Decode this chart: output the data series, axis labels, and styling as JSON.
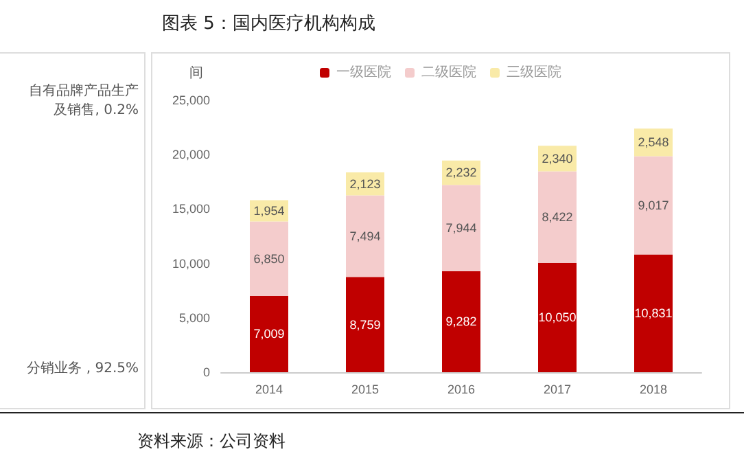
{
  "chart_data": [
    {
      "type": "other",
      "annotations": [
        "自有品牌产品生产及销售, 0.2%",
        "分销业务 , 92.5%"
      ]
    },
    {
      "type": "bar",
      "title": "图表 5：国内医疗机构构成",
      "ylabel": "间",
      "categories": [
        "2014",
        "2015",
        "2016",
        "2017",
        "2018"
      ],
      "stacked": true,
      "legend": "top",
      "grid": false,
      "ylim": [
        0,
        25000
      ],
      "yticks": [
        0,
        {
          "value": 5000,
          "label": "5,000"
        },
        {
          "value": 10000,
          "label": "10,000"
        },
        {
          "value": 15000,
          "label": "15,000"
        },
        {
          "value": 20000,
          "label": "20,000"
        },
        {
          "value": 25000,
          "label": "25,000"
        }
      ],
      "annotations": [
        "资料来源：公司资料"
      ],
      "series": [
        {
          "name": "一级医院",
          "color": "#c00000",
          "values": [
            7009,
            8759,
            9282,
            10050,
            10831
          ],
          "value_labels": [
            "7,009",
            "8,759",
            "9,282",
            "10,050",
            "10,831"
          ]
        },
        {
          "name": "二级医院",
          "color": "#f4cccc",
          "values": [
            6850,
            7494,
            7944,
            8422,
            9017
          ],
          "value_labels": [
            "6,850",
            "7,494",
            "7,944",
            "8,422",
            "9,017"
          ]
        },
        {
          "name": "三级医院",
          "color": "#f9eaa8",
          "values": [
            1954,
            2123,
            2232,
            2340,
            2548
          ],
          "value_labels": [
            "1,954",
            "2,123",
            "2,232",
            "2,340",
            "2,548"
          ]
        }
      ]
    }
  ]
}
